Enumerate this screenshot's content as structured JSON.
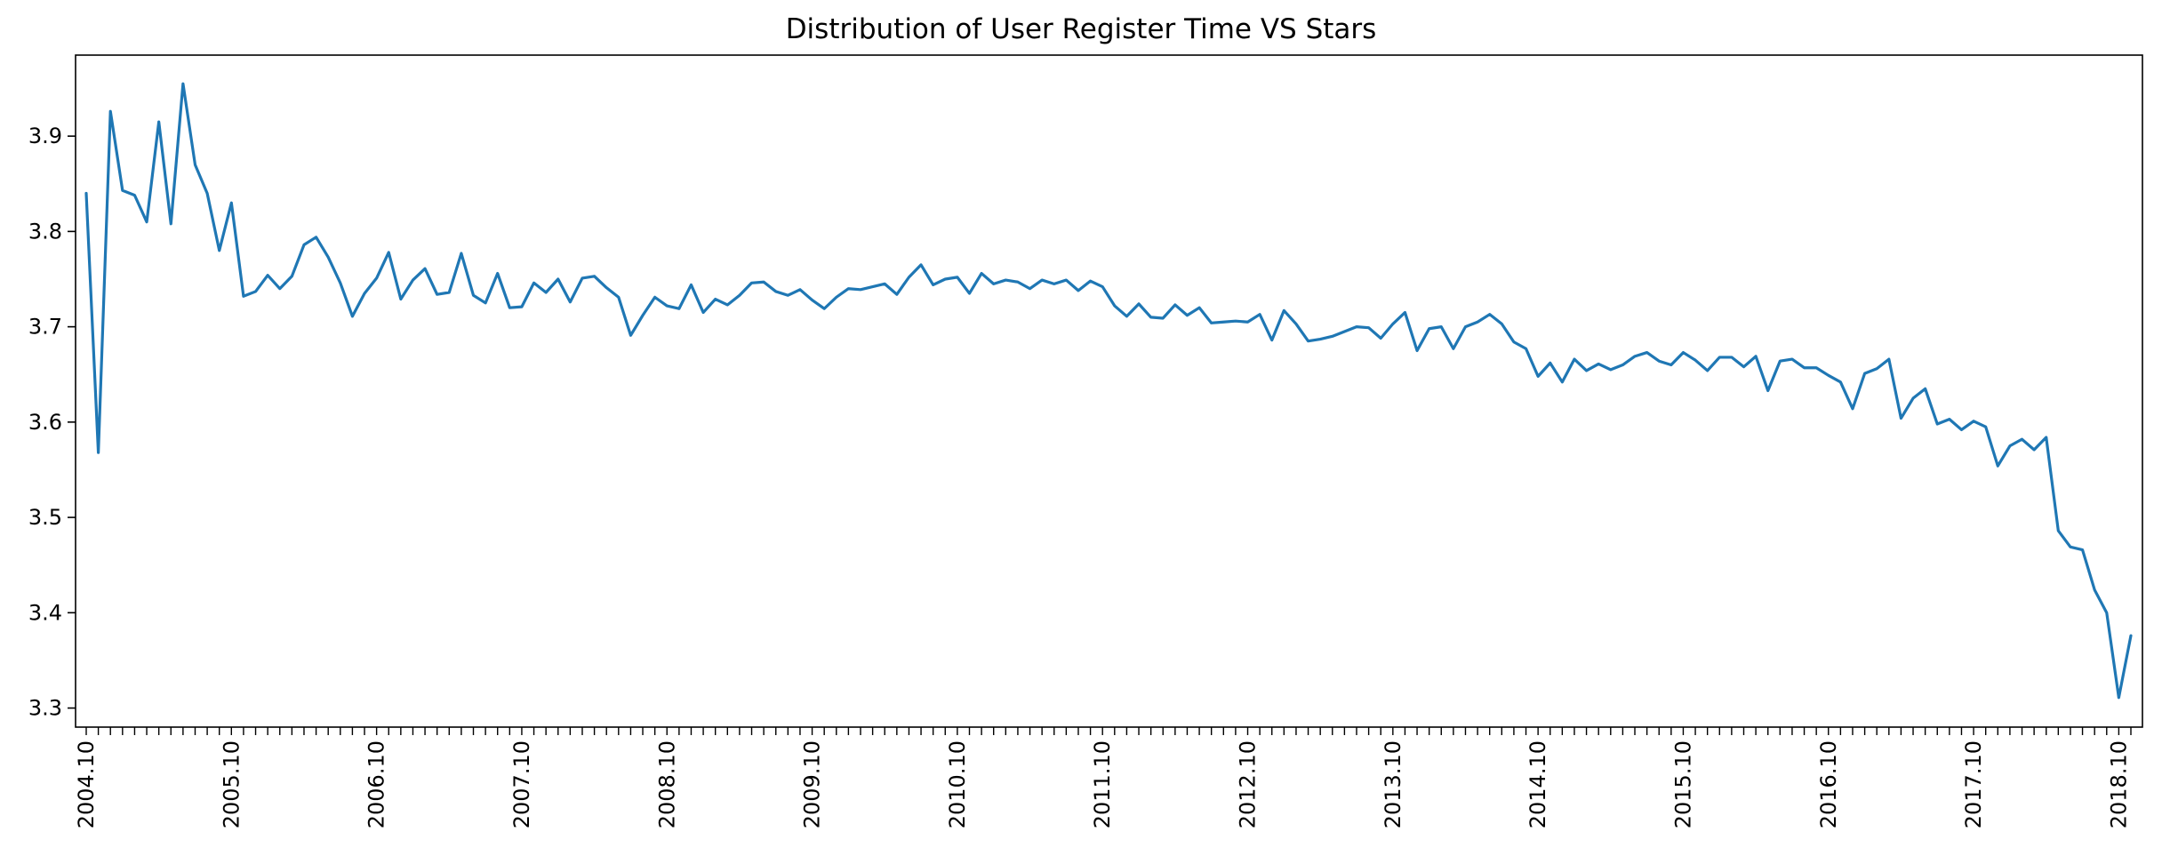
{
  "chart_data": {
    "type": "line",
    "title": "Distribution of User Register Time VS Stars",
    "xlabel": "",
    "ylabel": "",
    "ylim": [
      3.28,
      3.985
    ],
    "yticks": [
      3.3,
      3.4,
      3.5,
      3.6,
      3.7,
      3.8,
      3.9
    ],
    "ytick_labels": [
      "3.3",
      "3.4",
      "3.5",
      "3.6",
      "3.7",
      "3.8",
      "3.9"
    ],
    "x_start": "2004.10",
    "x_tick_labels": [
      "2004.10",
      "2005.10",
      "2006.10",
      "2007.10",
      "2008.10",
      "2009.10",
      "2010.10",
      "2011.10",
      "2012.10",
      "2013.10",
      "2014.10",
      "2015.10",
      "2016.10",
      "2017.10",
      "2018.10"
    ],
    "grid": false,
    "series_color": "#1f77b4",
    "series": [
      {
        "name": "",
        "values": [
          3.84,
          3.568,
          3.926,
          3.843,
          3.838,
          3.81,
          3.915,
          3.808,
          3.955,
          3.87,
          3.84,
          3.78,
          3.83,
          3.732,
          3.737,
          3.754,
          3.74,
          3.753,
          3.786,
          3.794,
          3.773,
          3.746,
          3.711,
          3.735,
          3.751,
          3.778,
          3.729,
          3.749,
          3.761,
          3.734,
          3.736,
          3.777,
          3.733,
          3.725,
          3.756,
          3.72,
          3.721,
          3.746,
          3.736,
          3.75,
          3.726,
          3.751,
          3.753,
          3.741,
          3.731,
          3.691,
          3.712,
          3.731,
          3.722,
          3.719,
          3.744,
          3.715,
          3.729,
          3.723,
          3.733,
          3.746,
          3.747,
          3.737,
          3.733,
          3.739,
          3.728,
          3.719,
          3.731,
          3.74,
          3.739,
          3.742,
          3.745,
          3.734,
          3.752,
          3.765,
          3.744,
          3.75,
          3.752,
          3.735,
          3.756,
          3.745,
          3.749,
          3.747,
          3.74,
          3.749,
          3.745,
          3.749,
          3.738,
          3.748,
          3.742,
          3.722,
          3.711,
          3.724,
          3.71,
          3.709,
          3.723,
          3.712,
          3.72,
          3.704,
          3.705,
          3.706,
          3.705,
          3.713,
          3.686,
          3.717,
          3.703,
          3.685,
          3.687,
          3.69,
          3.695,
          3.7,
          3.699,
          3.688,
          3.703,
          3.715,
          3.675,
          3.698,
          3.7,
          3.677,
          3.7,
          3.705,
          3.713,
          3.703,
          3.684,
          3.677,
          3.648,
          3.662,
          3.642,
          3.666,
          3.654,
          3.661,
          3.655,
          3.66,
          3.669,
          3.673,
          3.664,
          3.66,
          3.673,
          3.665,
          3.654,
          3.668,
          3.668,
          3.658,
          3.669,
          3.633,
          3.664,
          3.666,
          3.657,
          3.657,
          3.649,
          3.642,
          3.614,
          3.651,
          3.656,
          3.666,
          3.604,
          3.625,
          3.635,
          3.598,
          3.603,
          3.592,
          3.601,
          3.595,
          3.554,
          3.575,
          3.582,
          3.571,
          3.584,
          3.486,
          3.469,
          3.466,
          3.424,
          3.4,
          3.311,
          3.376
        ]
      }
    ]
  }
}
